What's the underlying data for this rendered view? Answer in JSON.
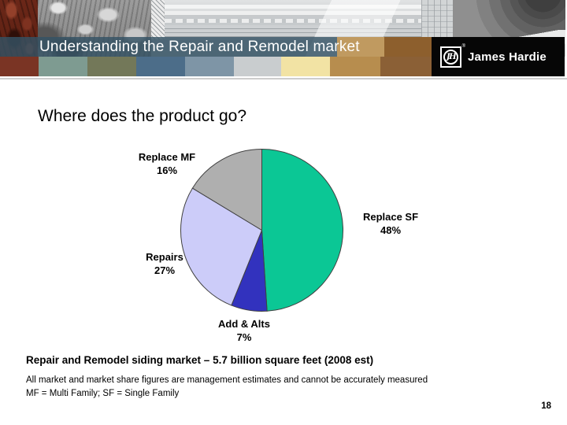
{
  "header": {
    "title": "Understanding the Repair and Remodel market",
    "brand": "James Hardie",
    "logo_monogram": "JH",
    "registered_mark": "®",
    "palette_squares": [
      "#7A3424",
      "#7E9B91",
      "#737859",
      "#4C6D89",
      "#7E95A6",
      "#C9CDCF",
      "#F2E3A4",
      "#B78D4E",
      "#8B6036"
    ]
  },
  "main": {
    "question": "Where does the product go?"
  },
  "chart_data": {
    "type": "pie",
    "title": "Where does the product go?",
    "start_angle": "12 o'clock",
    "direction": "clockwise",
    "stroke_color": "#404040",
    "slices": [
      {
        "label": "Replace SF",
        "pct_label": "48%",
        "value": 48,
        "color": "#0BC795"
      },
      {
        "label": "Add & Alts",
        "pct_label": "7%",
        "value": 7,
        "color": "#3232BE"
      },
      {
        "label": "Repairs",
        "pct_label": "27%",
        "value": 27,
        "color": "#CCCCF9"
      },
      {
        "label": "Replace MF",
        "pct_label": "16%",
        "value": 16,
        "color": "#AFAFAF"
      }
    ]
  },
  "notes": {
    "headline": "Repair and Remodel siding market – 5.7 billion square feet (2008 est)",
    "disclaimer": "All market and market share figures are management estimates and cannot be accurately measured",
    "legend_note": "MF = Multi Family; SF = Single Family"
  },
  "page_number": "18"
}
